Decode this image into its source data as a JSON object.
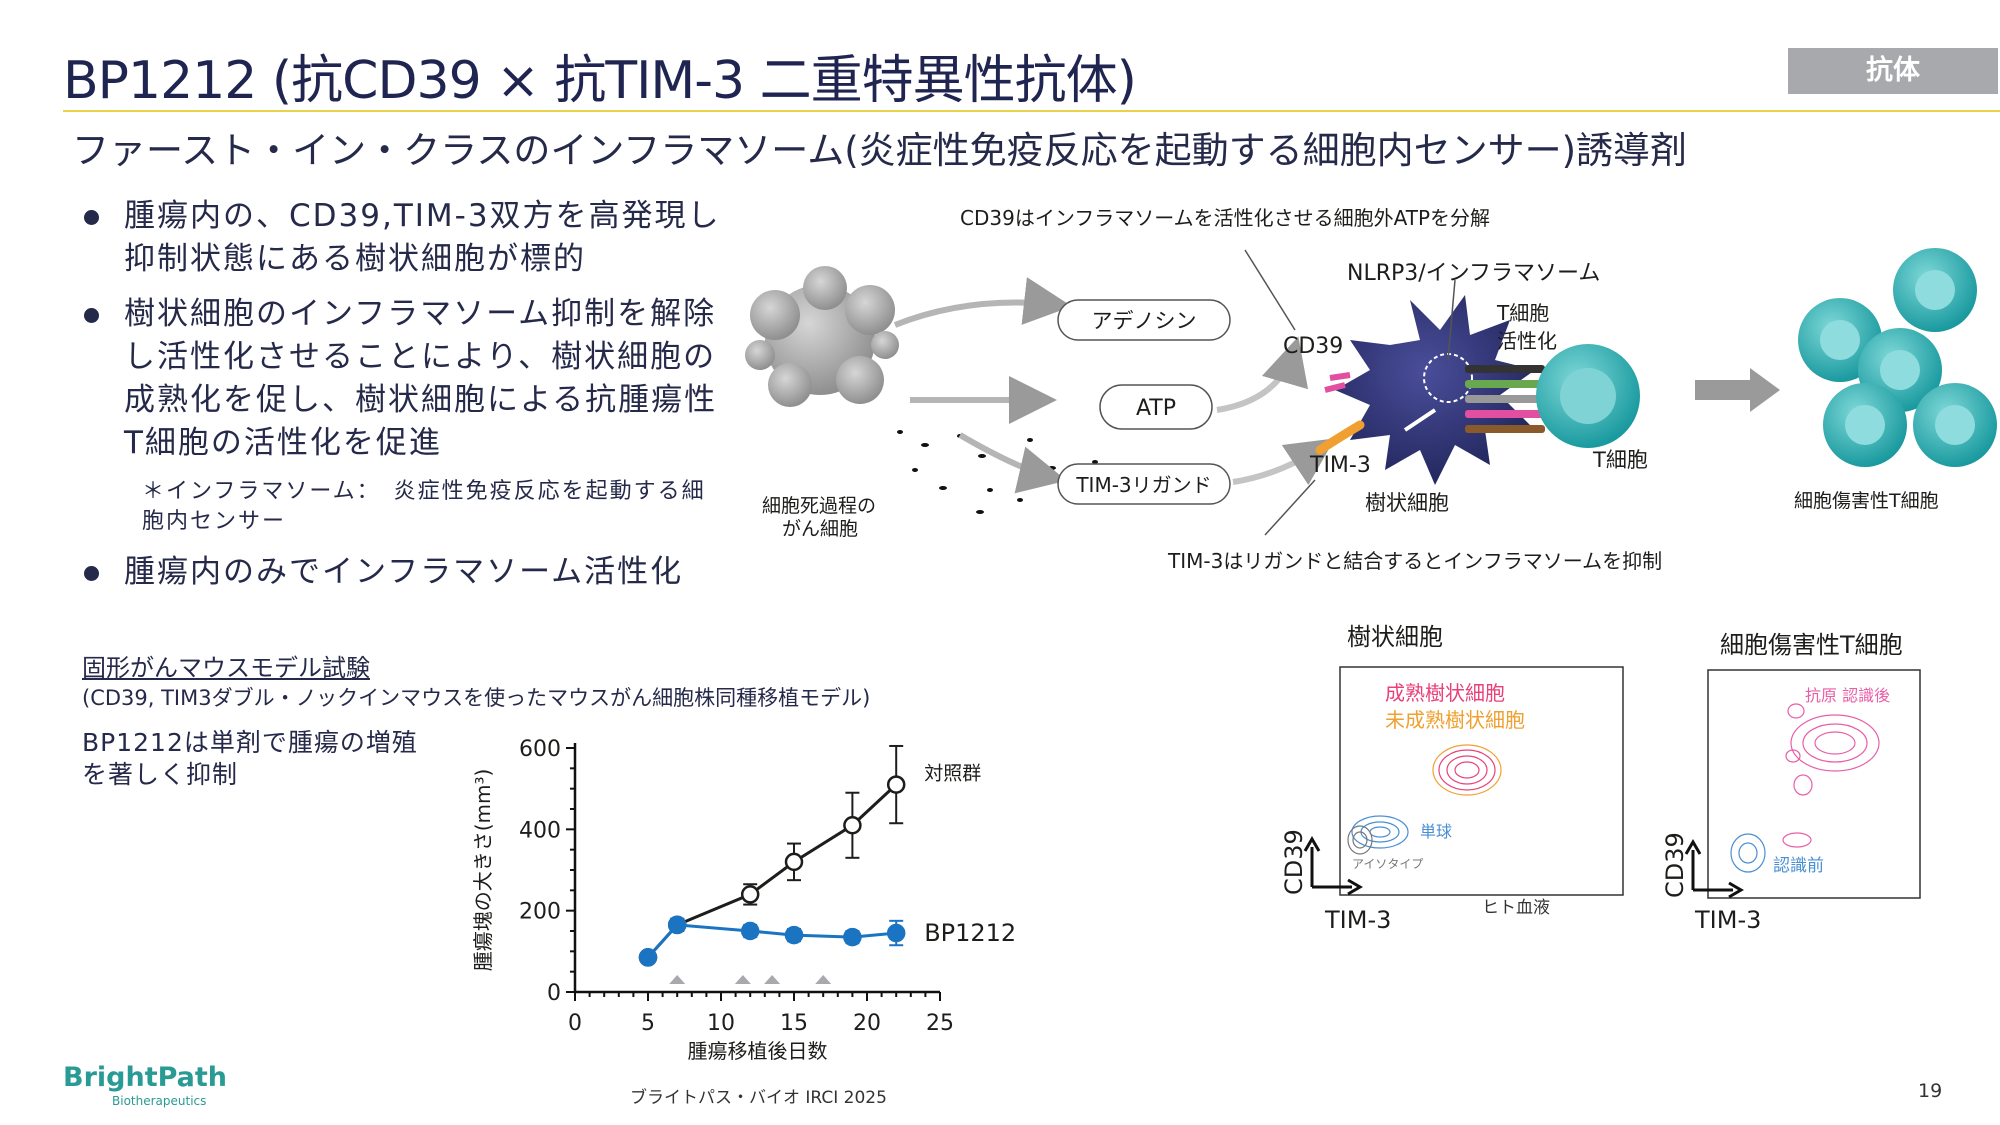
{
  "header": {
    "title": "BP1212 (抗CD39 × 抗TIM-3 二重特異性抗体)",
    "badge": "抗体",
    "subtitle": "ファースト・イン・クラスのインフラマソーム(炎症性免疫反応を起動する細胞内センサー)誘導剤"
  },
  "bullets": [
    "腫瘍内の、CD39,TIM-3双方を高発現し抑制状態にある樹状細胞が標的",
    "樹状細胞のインフラマソーム抑制を解除し活性化させることにより、樹状細胞の成熟化を促し、樹状細胞による抗腫瘍性T細胞の活性化を促進",
    "腫瘍内のみでインフラマソーム活性化"
  ],
  "footnote": "＊インフラマソーム：　炎症性免疫反応を起動する細胞内センサー",
  "mechanism": {
    "cd39_caption": "CD39はインフラマソームを活性化させる細胞外ATPを分解",
    "nlrp3": "NLRP3/インフラマソーム",
    "t_activation": "T細胞\n活性化",
    "cd39": "CD39",
    "tim3": "TIM-3",
    "adenosine": "アデノシン",
    "atp": "ATP",
    "tim3_ligand": "TIM-3リガンド",
    "dying_cell": "細胞死過程の\nがん細胞",
    "dendritic_cell": "樹状細胞",
    "t_cell": "T細胞",
    "cytotoxic_t": "細胞傷害性T細胞",
    "tim3_caption": "TIM-3はリガンドと結合するとインフラマソームを抑制"
  },
  "flow": {
    "dc_title": "樹状細胞",
    "mature": "成熟樹状細胞",
    "immature": "未成熟樹状細胞",
    "monocyte": "単球",
    "isotype": "アイソタイプ",
    "human_blood": "ヒト血液",
    "t_title": "細胞傷害性T細胞",
    "post_recog": "抗原 認識後",
    "pre_recog": "認識前",
    "yaxis": "CD39",
    "xaxis": "TIM-3"
  },
  "study": {
    "title": "固形がんマウスモデル試験",
    "subtitle": "(CD39, TIM3ダブル・ノックインマウスを使ったマウスがん細胞株同種移植モデル)",
    "claim": "BP1212は単剤で腫瘍の増殖を著しく抑制"
  },
  "chart_data": {
    "type": "line",
    "ylabel": "腫瘍塊の大きさ(mm³)",
    "xlabel": "腫瘍移植後日数",
    "xlim": [
      0,
      25
    ],
    "ylim": [
      0,
      600
    ],
    "xticks": [
      0,
      5,
      10,
      15,
      20,
      25
    ],
    "yticks": [
      0,
      200,
      400,
      600
    ],
    "series": [
      {
        "name": "対照群",
        "color": "#1d1d1b",
        "marker": "open-circle",
        "x": [
          5,
          7,
          12,
          15,
          19,
          22
        ],
        "y": [
          85,
          165,
          240,
          320,
          410,
          510
        ],
        "err": [
          0,
          15,
          25,
          45,
          80,
          95
        ]
      },
      {
        "name": "BP1212",
        "color": "#1a74c2",
        "marker": "filled-circle",
        "x": [
          5,
          7,
          12,
          15,
          19,
          22
        ],
        "y": [
          85,
          165,
          150,
          140,
          135,
          145
        ],
        "err": [
          0,
          15,
          15,
          15,
          15,
          30
        ]
      }
    ],
    "dosing_days": [
      7,
      11.5,
      13.5,
      17
    ]
  },
  "footer": {
    "text": "ブライトパス・バイオ IRCI 2025",
    "page": "19",
    "logo": "BrightPath",
    "logo_sub": "Biotherapeutics"
  },
  "colors": {
    "title": "#1f2550",
    "accent_line": "#e8d34a",
    "badge": "#a7a9ac",
    "teal": "#2a9a95",
    "bp1212_blue": "#1a74c2",
    "mature_pink": "#e8417a",
    "immature_orange": "#f0a030"
  }
}
